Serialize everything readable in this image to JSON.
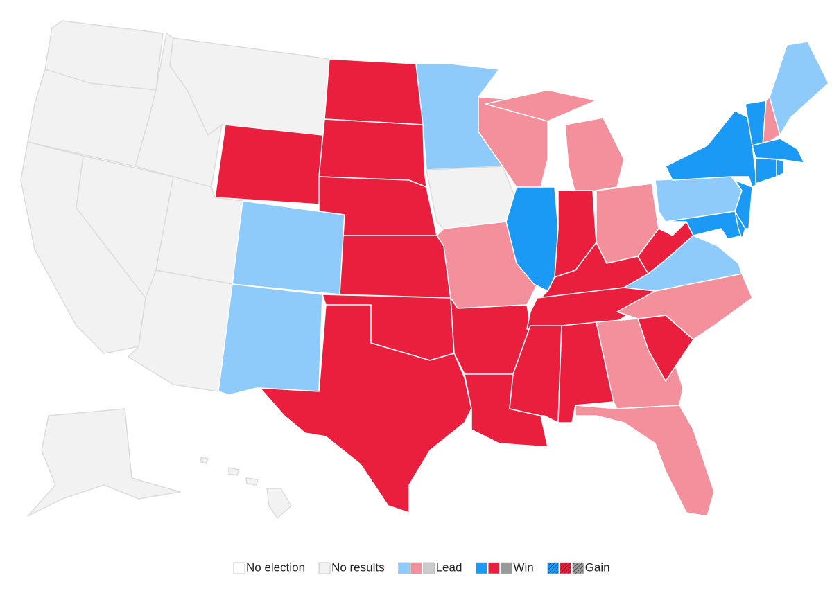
{
  "legend": [
    {
      "label": "No election",
      "colors": [
        "#ffffff"
      ]
    },
    {
      "label": "No results",
      "colors": [
        "#f2f2f2"
      ]
    },
    {
      "label": "Lead",
      "colors": [
        "#8ecbfb",
        "#f3909c",
        "#cccccc"
      ]
    },
    {
      "label": "Win",
      "colors": [
        "#1a9af5",
        "#ea1f3d",
        "#999999"
      ]
    },
    {
      "label": "Gain",
      "colors": [
        "#1a9af5",
        "#ea1f3d",
        "#999999"
      ],
      "hatched": true
    }
  ]
}
